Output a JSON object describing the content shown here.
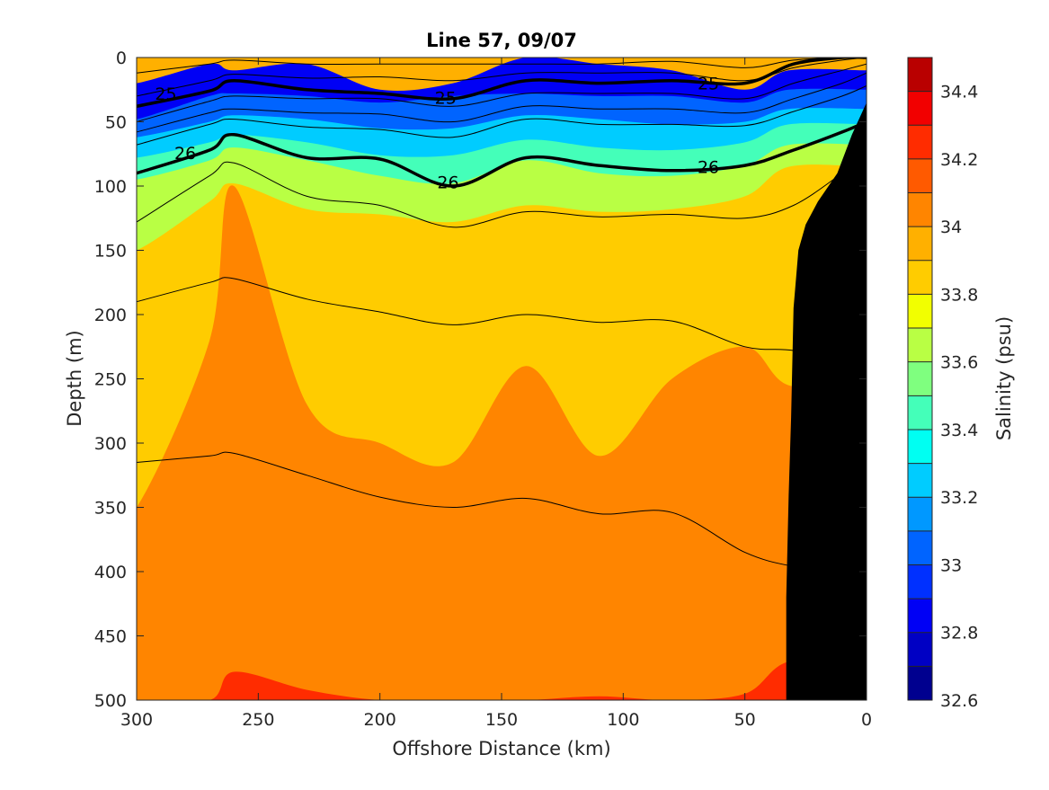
{
  "chart_data": {
    "type": "filled-contour",
    "title": "Line 57, 09/07",
    "xlabel": "Offshore Distance (km)",
    "ylabel": "Depth (m)",
    "xlim": [
      300,
      0
    ],
    "ylim": [
      0,
      500
    ],
    "x_reversed": true,
    "y_reversed": true,
    "xticks": [
      300,
      250,
      200,
      150,
      100,
      50,
      0
    ],
    "yticks": [
      0,
      50,
      100,
      150,
      200,
      250,
      300,
      350,
      400,
      450,
      500
    ],
    "colorbar": {
      "label": "Salinity (psu)",
      "range": [
        32.6,
        34.5
      ],
      "levels": [
        32.6,
        32.7,
        32.8,
        32.9,
        33.0,
        33.1,
        33.2,
        33.3,
        33.4,
        33.5,
        33.6,
        33.7,
        33.8,
        33.9,
        34.0,
        34.1,
        34.2,
        34.3,
        34.4,
        34.5
      ],
      "tick_values": [
        32.6,
        32.8,
        33.0,
        33.2,
        33.4,
        33.6,
        33.8,
        34.0,
        34.2,
        34.4
      ],
      "tick_labels": [
        "32.6",
        "32.8",
        "33",
        "33.2",
        "33.4",
        "33.6",
        "33.8",
        "34",
        "34.2",
        "34.4"
      ],
      "colors": [
        "#00008f",
        "#0000c4",
        "#0000f5",
        "#0030ff",
        "#0064ff",
        "#0098ff",
        "#00ccff",
        "#00fff2",
        "#44ffb9",
        "#7fff7f",
        "#b9ff44",
        "#f2ff00",
        "#ffcc00",
        "#ffb000",
        "#ff8500",
        "#ff5a00",
        "#ff2c00",
        "#f20000",
        "#b90000"
      ]
    },
    "salinity_layers": [
      {
        "value": 33.0,
        "color": "#0000f5",
        "depths": [
          20,
          5,
          10,
          5,
          25,
          20,
          0,
          5,
          10,
          25,
          10
        ]
      },
      {
        "value": 33.15,
        "color": "#0064ff",
        "depths": [
          48,
          30,
          28,
          30,
          35,
          30,
          28,
          30,
          30,
          35,
          25
        ]
      },
      {
        "value": 33.35,
        "color": "#00ccff",
        "depths": [
          62,
          50,
          45,
          48,
          55,
          55,
          45,
          48,
          52,
          50,
          40
        ]
      },
      {
        "value": 33.55,
        "color": "#44ffb9",
        "depths": [
          78,
          66,
          60,
          66,
          76,
          76,
          64,
          70,
          72,
          66,
          52
        ]
      },
      {
        "value": 33.75,
        "color": "#b9ff44",
        "depths": [
          95,
          80,
          70,
          80,
          92,
          98,
          80,
          90,
          92,
          84,
          68
        ]
      },
      {
        "value": 33.9,
        "color": "#ffcc00",
        "depths": [
          150,
          112,
          98,
          118,
          122,
          128,
          115,
          120,
          118,
          108,
          85
        ]
      },
      {
        "value": 34.05,
        "color": "#ff8500",
        "depths": [
          350,
          220,
          100,
          270,
          300,
          315,
          240,
          310,
          250,
          225,
          255
        ]
      },
      {
        "value": 34.25,
        "color": "#ff2c00",
        "depths": [
          500,
          500,
          478,
          492,
          500,
          500,
          500,
          497,
          500,
          495,
          470
        ]
      }
    ],
    "layer_x_km": [
      300,
      270,
      260,
      230,
      200,
      170,
      140,
      110,
      80,
      50,
      32
    ],
    "base_fill": {
      "value": 34.05,
      "color": "#ffb000"
    },
    "isopycnals": {
      "x_km": [
        300,
        270,
        260,
        230,
        200,
        170,
        140,
        110,
        80,
        50,
        30,
        10,
        0
      ],
      "thin": [
        [
          12,
          5,
          2,
          5,
          5,
          5,
          5,
          5,
          3,
          8,
          2,
          0,
          0
        ],
        [
          30,
          18,
          13,
          16,
          15,
          18,
          12,
          12,
          12,
          18,
          8,
          2,
          0
        ],
        [
          50,
          34,
          30,
          32,
          32,
          38,
          28,
          28,
          28,
          32,
          20,
          10,
          5
        ],
        [
          58,
          43,
          40,
          43,
          44,
          50,
          38,
          40,
          40,
          43,
          32,
          20,
          12
        ],
        [
          68,
          52,
          48,
          54,
          56,
          62,
          48,
          52,
          52,
          53,
          42,
          30,
          22
        ],
        [
          128,
          92,
          82,
          108,
          115,
          132,
          120,
          124,
          122,
          125,
          115,
          90,
          75
        ],
        [
          190,
          175,
          172,
          188,
          198,
          208,
          200,
          206,
          205,
          225,
          228,
          238,
          240
        ],
        [
          315,
          310,
          308,
          325,
          342,
          350,
          343,
          355,
          354,
          385,
          396,
          400,
          400
        ]
      ],
      "thick": [
        {
          "label": "25",
          "depths": [
            38,
            26,
            18,
            25,
            28,
            32,
            18,
            20,
            18,
            20,
            5,
            0,
            0
          ]
        },
        {
          "label": "26",
          "depths": [
            90,
            72,
            60,
            78,
            79,
            100,
            78,
            84,
            88,
            84,
            72,
            58,
            50
          ]
        }
      ],
      "label_positions": [
        {
          "label": "25",
          "x": 288,
          "y": 28
        },
        {
          "label": "25",
          "x": 173,
          "y": 31
        },
        {
          "label": "25",
          "x": 65,
          "y": 20
        },
        {
          "label": "26",
          "x": 280,
          "y": 74
        },
        {
          "label": "26",
          "x": 172,
          "y": 97
        },
        {
          "label": "26",
          "x": 65,
          "y": 85
        }
      ]
    },
    "bathymetry": {
      "color": "#000000",
      "x_km": [
        0,
        0,
        6,
        12,
        20,
        25,
        28,
        30,
        31,
        32,
        33,
        33
      ],
      "depths": [
        500,
        35,
        60,
        90,
        112,
        130,
        150,
        195,
        280,
        340,
        420,
        500
      ]
    }
  }
}
